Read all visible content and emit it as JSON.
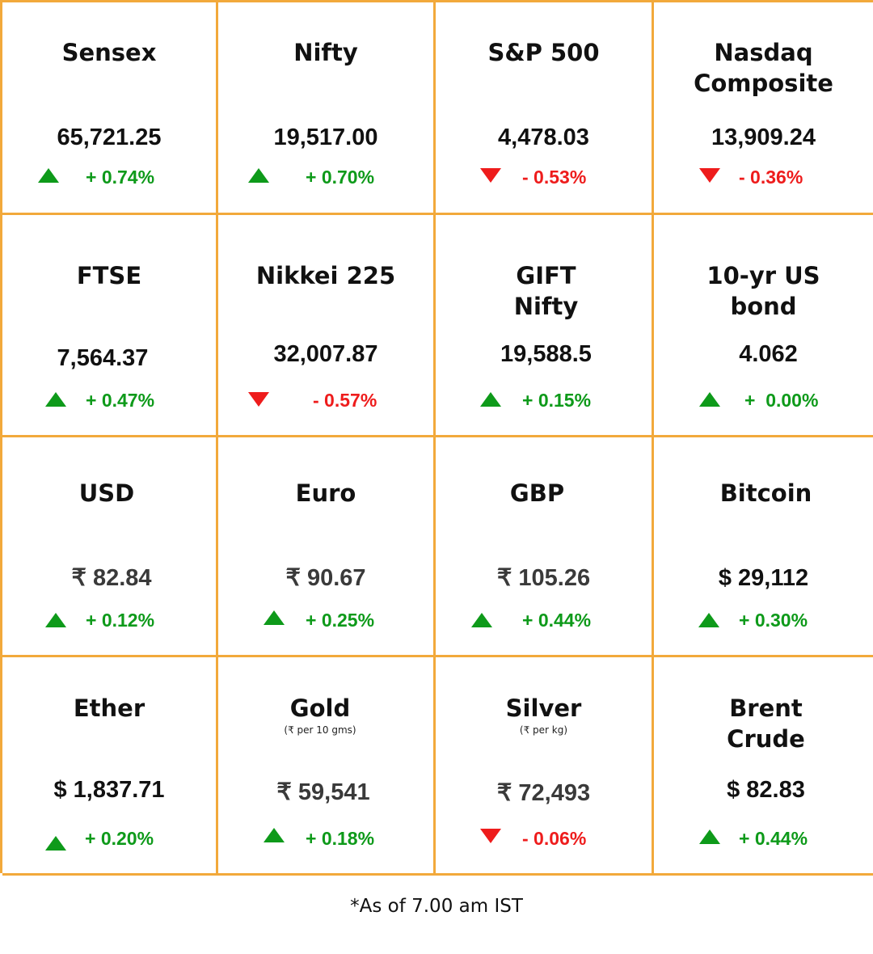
{
  "colors": {
    "border": "#F2A93B",
    "up": "#0E9A1A",
    "down": "#EE1C1C"
  },
  "tiles": [
    {
      "title": "Sensex",
      "value": "65,721.25",
      "direction": "up",
      "change": "+ 0.74%",
      "icon": "up-triangle-icon"
    },
    {
      "title": "Nifty",
      "value": "19,517.00",
      "direction": "up",
      "change": "+ 0.70%",
      "icon": "up-triangle-icon"
    },
    {
      "title": "S&P 500",
      "value": "4,478.03",
      "direction": "down",
      "change": "- 0.53%",
      "icon": "down-triangle-icon"
    },
    {
      "title": "Nasdaq\nComposite",
      "value": "13,909.24",
      "direction": "down",
      "change": "- 0.36%",
      "icon": "down-triangle-icon"
    },
    {
      "title": "FTSE",
      "value": "7,564.37",
      "direction": "up",
      "change": "+ 0.47%",
      "icon": "up-triangle-icon"
    },
    {
      "title": "Nikkei 225",
      "value": "32,007.87",
      "direction": "down",
      "change": "- 0.57%",
      "icon": "down-triangle-icon"
    },
    {
      "title": "GIFT\nNifty",
      "value": "19,588.5",
      "direction": "up",
      "change": "+ 0.15%",
      "icon": "up-triangle-icon"
    },
    {
      "title": "10-yr US\nbond",
      "value": "4.062",
      "direction": "up",
      "change": "+  0.00%",
      "icon": "up-triangle-icon"
    },
    {
      "title": "USD",
      "value": "₹ 82.84",
      "direction": "up",
      "change": "+ 0.12%",
      "icon": "up-triangle-icon"
    },
    {
      "title": "Euro",
      "value": "₹ 90.67",
      "direction": "up",
      "change": "+ 0.25%",
      "icon": "up-triangle-icon"
    },
    {
      "title": "GBP",
      "value": "₹ 105.26",
      "direction": "up",
      "change": "+ 0.44%",
      "icon": "up-triangle-icon"
    },
    {
      "title": "Bitcoin",
      "value": "$ 29,112",
      "direction": "up",
      "change": "+ 0.30%",
      "icon": "up-triangle-icon"
    },
    {
      "title": "Ether",
      "value": "$ 1,837.71",
      "direction": "up",
      "change": "+ 0.20%",
      "icon": "up-triangle-icon"
    },
    {
      "title": "Gold",
      "subtitle": "(₹ per 10 gms)",
      "value": "₹ 59,541",
      "direction": "up",
      "change": "+ 0.18%",
      "icon": "up-triangle-icon"
    },
    {
      "title": "Silver",
      "subtitle": "(₹ per kg)",
      "value": "₹  72,493",
      "direction": "down",
      "change": "- 0.06%",
      "icon": "down-triangle-icon"
    },
    {
      "title": "Brent\nCrude",
      "value": "$  82.83",
      "direction": "up",
      "change": "+ 0.44%",
      "icon": "up-triangle-icon"
    }
  ],
  "footnote": "*As of 7.00 am IST"
}
